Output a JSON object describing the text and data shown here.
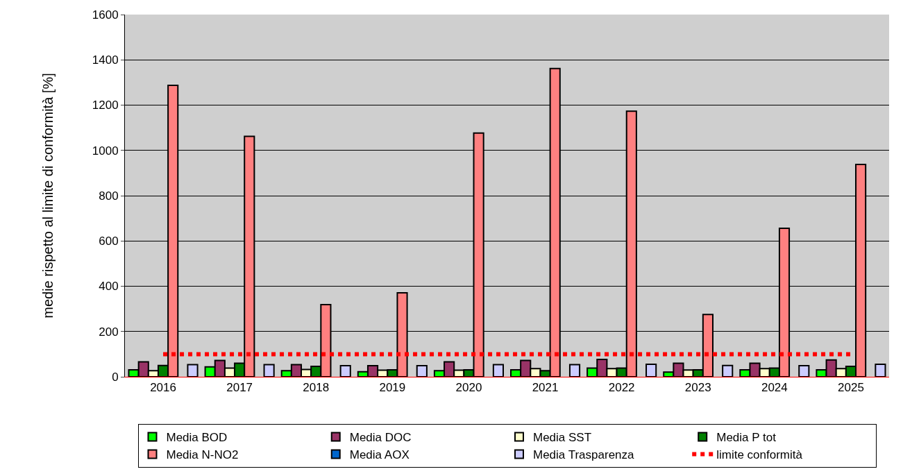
{
  "chart_data": {
    "type": "bar",
    "ylabel": "medie rispetto al limite di conformità [%]",
    "categories": [
      "2016",
      "2017",
      "2018",
      "2019",
      "2020",
      "2021",
      "2022",
      "2023",
      "2024",
      "2025"
    ],
    "series": [
      {
        "name": "Media BOD",
        "color": "#00ff00",
        "values": [
          31,
          44,
          27,
          22,
          27,
          31,
          38,
          21,
          31,
          31
        ]
      },
      {
        "name": "Media DOC",
        "color": "#993366",
        "values": [
          66,
          72,
          54,
          49,
          66,
          72,
          77,
          60,
          60,
          74
        ]
      },
      {
        "name": "Media SST",
        "color": "#ffffcc",
        "values": [
          27,
          38,
          32,
          29,
          29,
          36,
          36,
          30,
          36,
          36
        ]
      },
      {
        "name": "Media P tot",
        "color": "#008000",
        "values": [
          50,
          60,
          46,
          31,
          31,
          27,
          38,
          31,
          38,
          46
        ]
      },
      {
        "name": "Media N-NO2",
        "color": "#ff8080",
        "values": [
          1287,
          1062,
          319,
          371,
          1077,
          1362,
          1173,
          275,
          656,
          938
        ]
      },
      {
        "name": "Media AOX",
        "color": "#0066cc",
        "values": [
          null,
          null,
          null,
          null,
          null,
          null,
          null,
          null,
          null,
          null
        ]
      },
      {
        "name": "Media Trasparenza",
        "color": "#ccccff",
        "values": [
          54,
          54,
          49,
          49,
          54,
          54,
          55,
          50,
          49,
          55
        ]
      },
      {
        "name": "limite conformità",
        "color": "#ff0000",
        "type": "line",
        "line_style": "dotted",
        "values": [
          100,
          100,
          100,
          100,
          100,
          100,
          100,
          100,
          100,
          100
        ]
      }
    ],
    "ylim": [
      0,
      1600
    ],
    "yticks": [
      0,
      200,
      400,
      600,
      800,
      1000,
      1200,
      1400,
      1600
    ],
    "grid": "y",
    "legend": "bottom"
  }
}
